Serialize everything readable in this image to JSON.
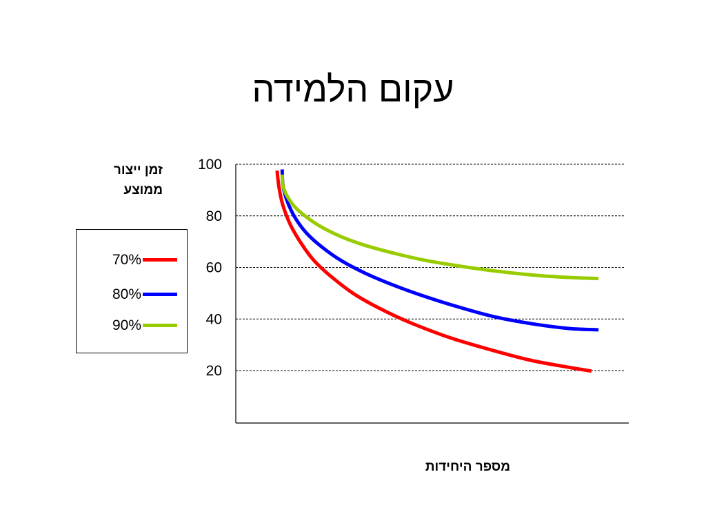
{
  "title": "עקום הלמידה",
  "chart_data": {
    "type": "line",
    "title": "עקום הלמידה",
    "ylabel": "זמן  ייצור ממוצע",
    "xlabel": "מספר היחידות",
    "yticks": [
      100,
      80,
      60,
      40,
      20
    ],
    "ylim": [
      0,
      100
    ],
    "xlim": [
      0,
      100
    ],
    "grid": true,
    "legend_position": "left",
    "series": [
      {
        "name": "70%",
        "color": "#ff0000",
        "x": [
          10.5,
          11,
          12,
          14,
          17,
          20,
          24,
          30,
          37,
          45,
          55,
          65,
          75,
          85,
          90.5
        ],
        "y": [
          97.5,
          91,
          84,
          76.2,
          68.5,
          62.5,
          56.8,
          49.8,
          43.8,
          38.2,
          32.5,
          28,
          24,
          21.2,
          19.8
        ]
      },
      {
        "name": "80%",
        "color": "#0000ff",
        "x": [
          11.8,
          12,
          13,
          15,
          18,
          22,
          27,
          33,
          40,
          48,
          57,
          66,
          76,
          85,
          92.3
        ],
        "y": [
          98,
          92,
          86,
          79.5,
          73.3,
          67.8,
          62.5,
          57.7,
          53.2,
          48.8,
          44.5,
          40.8,
          38,
          36.3,
          35.8
        ]
      },
      {
        "name": "90%",
        "color": "#99cc00",
        "x": [
          11.8,
          12,
          13,
          15,
          18,
          22,
          27,
          33,
          40,
          48,
          57,
          66,
          76,
          85,
          92.3
        ],
        "y": [
          96,
          91.8,
          87.8,
          83.5,
          79.5,
          75.5,
          71.8,
          68.5,
          65.6,
          62.8,
          60.5,
          58.6,
          57,
          56.1,
          55.7
        ]
      }
    ]
  }
}
